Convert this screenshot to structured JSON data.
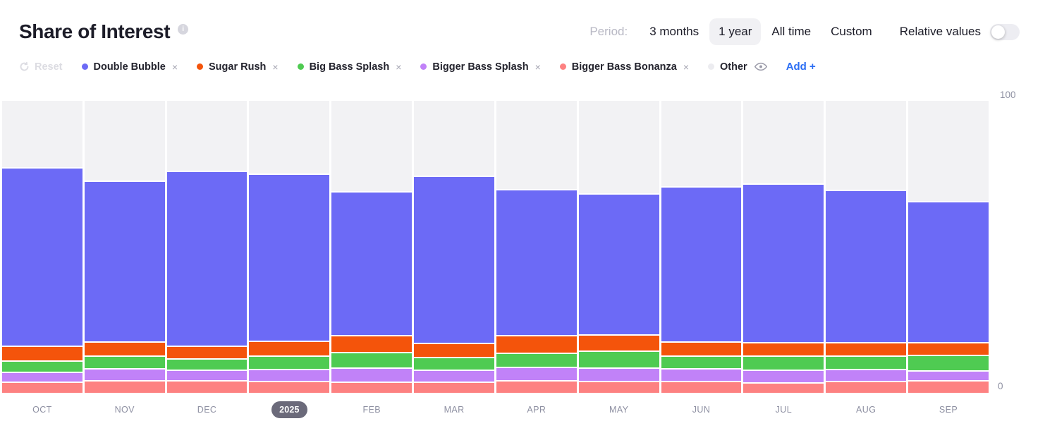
{
  "header": {
    "title": "Share of Interest"
  },
  "period": {
    "label": "Period:",
    "options": [
      {
        "label": "3 months",
        "selected": false
      },
      {
        "label": "1 year",
        "selected": true
      },
      {
        "label": "All time",
        "selected": false
      },
      {
        "label": "Custom",
        "selected": false
      }
    ],
    "relative_label": "Relative values",
    "relative_on": false
  },
  "legend": {
    "reset_label": "Reset",
    "add_label": "Add +",
    "items": [
      {
        "label": "Double Bubble",
        "color": "#6c6af6",
        "removable": true
      },
      {
        "label": "Sugar Rush",
        "color": "#f4540b",
        "removable": true
      },
      {
        "label": "Big Bass Splash",
        "color": "#4fcb52",
        "removable": true
      },
      {
        "label": "Bigger Bass Splash",
        "color": "#c182f8",
        "removable": true
      },
      {
        "label": "Bigger Bass Bonanza",
        "color": "#fd8181",
        "removable": true
      },
      {
        "label": "Other",
        "color": "#ececf0",
        "removable": false,
        "eye": true
      }
    ]
  },
  "axis": {
    "y_max": "100",
    "y_min": "0"
  },
  "chart_data": {
    "type": "bar",
    "stacked": true,
    "unit": "percent",
    "title": "Share of Interest",
    "ylim": [
      0,
      100
    ],
    "y_ticks": [
      0,
      100
    ],
    "grid": false,
    "legend_position": "top",
    "categories": [
      "OCT",
      "NOV",
      "DEC",
      "2025",
      "FEB",
      "MAR",
      "APR",
      "MAY",
      "JUN",
      "JUL",
      "AUG",
      "SEP"
    ],
    "year_badge_index": 3,
    "series": [
      {
        "name": "Double Bubble",
        "color": "#6c6af6",
        "values": [
          61.2,
          55.1,
          59.9,
          57.3,
          49.3,
          57.2,
          49.9,
          48.3,
          53.0,
          54.3,
          52.3,
          48.2
        ]
      },
      {
        "name": "Sugar Rush",
        "color": "#f4540b",
        "values": [
          4.9,
          5.0,
          4.3,
          5.0,
          5.7,
          4.8,
          6.2,
          5.6,
          4.8,
          4.7,
          4.5,
          4.4
        ]
      },
      {
        "name": "Big Bass Splash",
        "color": "#4fcb52",
        "values": [
          3.9,
          4.3,
          4.0,
          4.5,
          5.3,
          4.4,
          4.7,
          5.7,
          4.4,
          4.9,
          4.7,
          5.3
        ]
      },
      {
        "name": "Bigger Bass Splash",
        "color": "#c182f8",
        "values": [
          3.5,
          4.0,
          3.6,
          4.3,
          4.8,
          4.2,
          4.7,
          4.6,
          4.3,
          4.3,
          4.1,
          3.5
        ]
      },
      {
        "name": "Bigger Bass Bonanza",
        "color": "#fd8181",
        "values": [
          3.8,
          4.4,
          4.3,
          4.0,
          3.9,
          3.8,
          4.3,
          4.1,
          4.2,
          3.6,
          4.0,
          4.3
        ]
      },
      {
        "name": "Other",
        "color": "#f2f2f4",
        "values": [
          22.7,
          27.2,
          23.9,
          24.9,
          31.0,
          25.6,
          30.2,
          31.7,
          29.3,
          28.2,
          30.4,
          34.3
        ]
      }
    ]
  }
}
